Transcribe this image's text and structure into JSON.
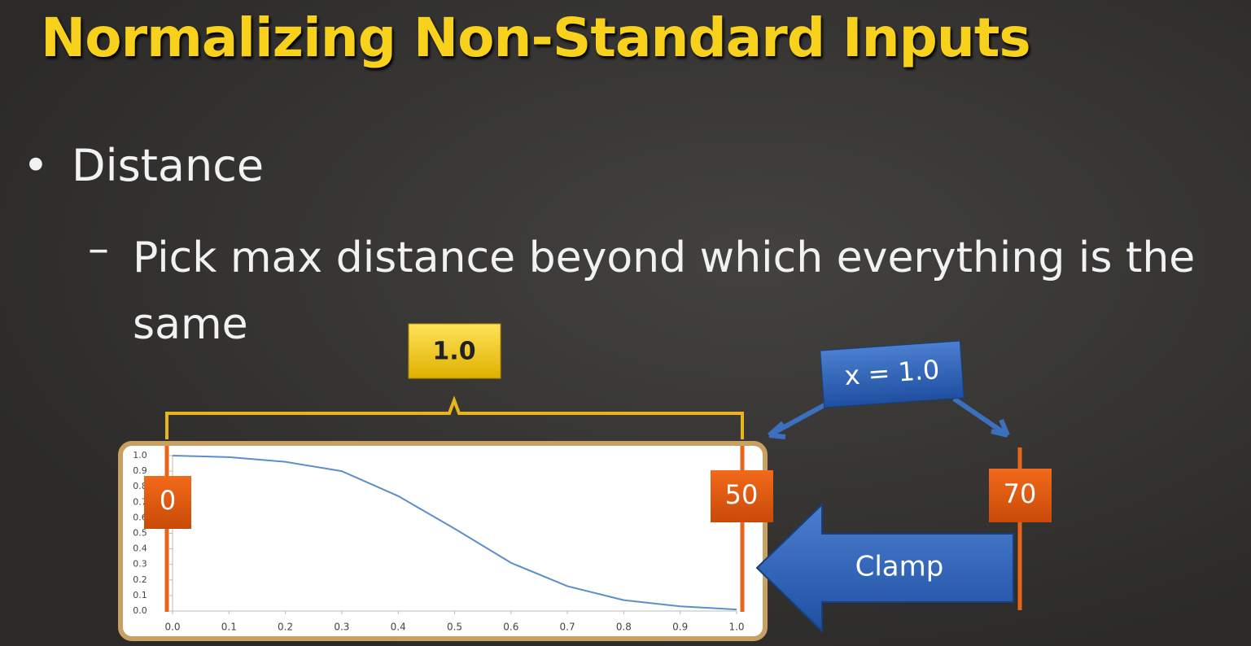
{
  "slide": {
    "title": "Normalizing Non-Standard Inputs",
    "bullet": "Distance",
    "sub_bullet": "Pick max distance beyond which everything is the same",
    "annotations": {
      "range_label": "1.0",
      "output_label": "x = 1.0",
      "start_label": "0",
      "max_label": "50",
      "beyond_label": "70",
      "clamp_label": "Clamp"
    }
  },
  "chart_data": {
    "type": "line",
    "color": "#5b8fc7",
    "x": [
      0,
      0.1,
      0.2,
      0.3,
      0.4,
      0.5,
      0.6,
      0.7,
      0.8,
      0.9,
      1.0
    ],
    "values": [
      1.0,
      0.99,
      0.96,
      0.9,
      0.74,
      0.53,
      0.31,
      0.16,
      0.07,
      0.03,
      0.01
    ],
    "xlim": [
      0,
      1
    ],
    "ylim": [
      0,
      1
    ],
    "xticks": [
      {
        "value": 0,
        "label": "0.0"
      },
      {
        "value": 0.1,
        "label": "0.1"
      },
      {
        "value": 0.2,
        "label": "0.2"
      },
      {
        "value": 0.3,
        "label": "0.3"
      },
      {
        "value": 0.4,
        "label": "0.4"
      },
      {
        "value": 0.5,
        "label": "0.5"
      },
      {
        "value": 0.6,
        "label": "0.6"
      },
      {
        "value": 0.7,
        "label": "0.7"
      },
      {
        "value": 0.8,
        "label": "0.8"
      },
      {
        "value": 0.9,
        "label": "0.9"
      },
      {
        "value": 1,
        "label": "1.0"
      }
    ],
    "yticks": [
      {
        "value": 0,
        "label": "0.0"
      },
      {
        "value": 0.1,
        "label": "0.1"
      },
      {
        "value": 0.2,
        "label": "0.2"
      },
      {
        "value": 0.3,
        "label": "0.3"
      },
      {
        "value": 0.4,
        "label": "0.4"
      },
      {
        "value": 0.5,
        "label": "0.5"
      },
      {
        "value": 0.6,
        "label": "0.6"
      },
      {
        "value": 0.7,
        "label": "0.7"
      },
      {
        "value": 0.8,
        "label": "0.8"
      },
      {
        "value": 0.9,
        "label": "0.9"
      },
      {
        "value": 1,
        "label": "1.0"
      }
    ]
  }
}
